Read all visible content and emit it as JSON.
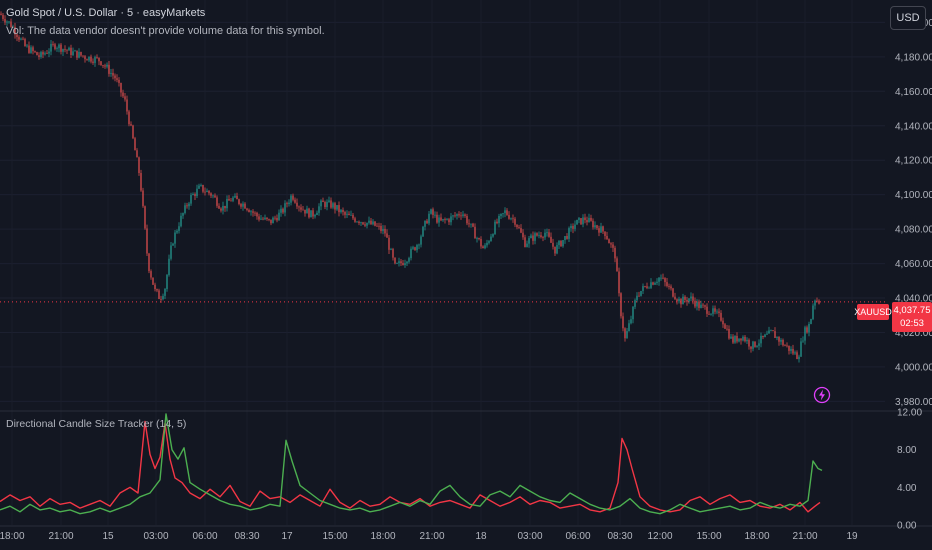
{
  "legend": {
    "title": "Gold Spot / U.S. Dollar · 5 · easyMarkets",
    "volume_note": "Vol: The data vendor doesn't provide volume data for this symbol."
  },
  "currency_button": "USD",
  "last_price": {
    "symbol": "XAUUSD",
    "price": "4,037.75",
    "countdown": "02:53",
    "value": 4037.75
  },
  "price_axis": {
    "labels": [
      "4,200.00",
      "4,180.00",
      "4,160.00",
      "4,140.00",
      "4,120.00",
      "4,100.00",
      "4,080.00",
      "4,060.00",
      "4,040.00",
      "4,020.00",
      "4,000.00",
      "3,980.00"
    ],
    "values": [
      4200,
      4180,
      4160,
      4140,
      4120,
      4100,
      4080,
      4060,
      4040,
      4020,
      4000,
      3980
    ]
  },
  "indicator": {
    "title": "Directional Candle Size Tracker (14, 5)",
    "axis_labels": [
      "12.00",
      "8.00",
      "4.00",
      "0.00"
    ],
    "axis_values": [
      12,
      8,
      4,
      0
    ],
    "colors": {
      "up": "#4caf50",
      "down": "#f23645"
    }
  },
  "time_axis": {
    "labels": [
      "18:00",
      "21:00",
      "15",
      "03:00",
      "06:00",
      "08:30",
      "17",
      "15:00",
      "18:00",
      "21:00",
      "18",
      "03:00",
      "06:00",
      "08:30",
      "12:00",
      "15:00",
      "18:00",
      "21:00",
      "19"
    ]
  },
  "colors": {
    "background": "#131722",
    "up_candle": "#26a69a",
    "down_candle": "#ef5350",
    "price_line": "#f23645"
  },
  "chart_data": [
    {
      "type": "candlestick",
      "title": "Gold Spot / U.S. Dollar · 5 · easyMarkets",
      "ylim": [
        3975,
        4213
      ],
      "close_path": [
        [
          0,
          4205
        ],
        [
          12,
          4198
        ],
        [
          25,
          4186
        ],
        [
          40,
          4180
        ],
        [
          55,
          4187
        ],
        [
          70,
          4183
        ],
        [
          85,
          4180
        ],
        [
          100,
          4178
        ],
        [
          115,
          4168
        ],
        [
          125,
          4154
        ],
        [
          132,
          4135
        ],
        [
          140,
          4110
        ],
        [
          148,
          4060
        ],
        [
          155,
          4044
        ],
        [
          160,
          4040
        ],
        [
          165,
          4046
        ],
        [
          172,
          4072
        ],
        [
          180,
          4085
        ],
        [
          190,
          4098
        ],
        [
          200,
          4104
        ],
        [
          212,
          4100
        ],
        [
          222,
          4092
        ],
        [
          232,
          4098
        ],
        [
          245,
          4094
        ],
        [
          258,
          4087
        ],
        [
          270,
          4084
        ],
        [
          282,
          4090
        ],
        [
          292,
          4100
        ],
        [
          300,
          4093
        ],
        [
          312,
          4088
        ],
        [
          322,
          4095
        ],
        [
          332,
          4094
        ],
        [
          345,
          4088
        ],
        [
          360,
          4085
        ],
        [
          375,
          4082
        ],
        [
          385,
          4078
        ],
        [
          395,
          4058
        ],
        [
          405,
          4062
        ],
        [
          418,
          4072
        ],
        [
          430,
          4090
        ],
        [
          440,
          4084
        ],
        [
          450,
          4086
        ],
        [
          462,
          4090
        ],
        [
          472,
          4080
        ],
        [
          484,
          4068
        ],
        [
          495,
          4082
        ],
        [
          505,
          4090
        ],
        [
          515,
          4085
        ],
        [
          525,
          4072
        ],
        [
          535,
          4076
        ],
        [
          545,
          4078
        ],
        [
          555,
          4068
        ],
        [
          565,
          4075
        ],
        [
          575,
          4083
        ],
        [
          585,
          4086
        ],
        [
          595,
          4082
        ],
        [
          605,
          4078
        ],
        [
          615,
          4065
        ],
        [
          620,
          4035
        ],
        [
          625,
          4016
        ],
        [
          630,
          4026
        ],
        [
          637,
          4042
        ],
        [
          648,
          4048
        ],
        [
          660,
          4052
        ],
        [
          670,
          4045
        ],
        [
          680,
          4038
        ],
        [
          690,
          4040
        ],
        [
          700,
          4035
        ],
        [
          712,
          4032
        ],
        [
          722,
          4028
        ],
        [
          732,
          4015
        ],
        [
          742,
          4018
        ],
        [
          752,
          4012
        ],
        [
          762,
          4016
        ],
        [
          772,
          4020
        ],
        [
          782,
          4014
        ],
        [
          790,
          4010
        ],
        [
          798,
          4006
        ],
        [
          804,
          4020
        ],
        [
          810,
          4025
        ],
        [
          814,
          4040
        ],
        [
          820,
          4037.75
        ]
      ]
    },
    {
      "type": "line",
      "title": "Directional Candle Size Tracker (14, 5)",
      "ylim": [
        0,
        12
      ],
      "series": [
        {
          "color": "#f23645",
          "points": [
            [
              0,
              2.5
            ],
            [
              10,
              3.2
            ],
            [
              20,
              2.6
            ],
            [
              30,
              3.0
            ],
            [
              40,
              2.0
            ],
            [
              50,
              2.8
            ],
            [
              60,
              2.2
            ],
            [
              70,
              2.4
            ],
            [
              80,
              1.8
            ],
            [
              90,
              2.2
            ],
            [
              100,
              2.6
            ],
            [
              110,
              2.0
            ],
            [
              120,
              3.4
            ],
            [
              130,
              4.0
            ],
            [
              138,
              3.4
            ],
            [
              145,
              11.0
            ],
            [
              150,
              7.5
            ],
            [
              155,
              6.0
            ],
            [
              160,
              7.2
            ],
            [
              165,
              10.8
            ],
            [
              170,
              7.0
            ],
            [
              175,
              5.0
            ],
            [
              182,
              4.5
            ],
            [
              190,
              3.4
            ],
            [
              200,
              2.8
            ],
            [
              210,
              3.8
            ],
            [
              220,
              3.0
            ],
            [
              230,
              4.2
            ],
            [
              240,
              2.5
            ],
            [
              250,
              2.0
            ],
            [
              260,
              3.6
            ],
            [
              270,
              2.8
            ],
            [
              280,
              3.0
            ],
            [
              290,
              2.4
            ],
            [
              300,
              3.2
            ],
            [
              310,
              2.6
            ],
            [
              320,
              2.0
            ],
            [
              330,
              3.8
            ],
            [
              340,
              2.4
            ],
            [
              350,
              1.8
            ],
            [
              360,
              2.6
            ],
            [
              370,
              2.0
            ],
            [
              380,
              2.2
            ],
            [
              390,
              3.0
            ],
            [
              400,
              2.4
            ],
            [
              410,
              2.2
            ],
            [
              420,
              2.8
            ],
            [
              430,
              2.0
            ],
            [
              440,
              2.4
            ],
            [
              450,
              2.6
            ],
            [
              460,
              2.2
            ],
            [
              470,
              1.8
            ],
            [
              480,
              3.2
            ],
            [
              490,
              2.6
            ],
            [
              500,
              2.0
            ],
            [
              510,
              2.4
            ],
            [
              520,
              3.0
            ],
            [
              530,
              2.2
            ],
            [
              540,
              2.6
            ],
            [
              550,
              2.4
            ],
            [
              560,
              1.8
            ],
            [
              570,
              2.0
            ],
            [
              580,
              2.2
            ],
            [
              590,
              1.6
            ],
            [
              600,
              1.4
            ],
            [
              610,
              1.8
            ],
            [
              618,
              4.5
            ],
            [
              622,
              9.2
            ],
            [
              627,
              8.0
            ],
            [
              632,
              6.0
            ],
            [
              640,
              3.0
            ],
            [
              650,
              2.0
            ],
            [
              660,
              1.6
            ],
            [
              670,
              1.4
            ],
            [
              680,
              1.6
            ],
            [
              690,
              2.6
            ],
            [
              700,
              3.0
            ],
            [
              710,
              2.2
            ],
            [
              720,
              2.8
            ],
            [
              730,
              3.2
            ],
            [
              740,
              2.4
            ],
            [
              750,
              2.6
            ],
            [
              760,
              2.0
            ],
            [
              770,
              1.8
            ],
            [
              780,
              2.2
            ],
            [
              790,
              1.6
            ],
            [
              800,
              2.4
            ],
            [
              808,
              1.4
            ],
            [
              815,
              2.0
            ],
            [
              820,
              2.4
            ]
          ]
        },
        {
          "color": "#4caf50",
          "points": [
            [
              0,
              1.6
            ],
            [
              10,
              2.0
            ],
            [
              20,
              1.4
            ],
            [
              30,
              2.2
            ],
            [
              40,
              1.6
            ],
            [
              50,
              1.8
            ],
            [
              60,
              1.4
            ],
            [
              70,
              1.6
            ],
            [
              80,
              1.2
            ],
            [
              90,
              1.4
            ],
            [
              100,
              1.8
            ],
            [
              110,
              1.4
            ],
            [
              120,
              1.8
            ],
            [
              130,
              2.2
            ],
            [
              140,
              3.0
            ],
            [
              150,
              3.4
            ],
            [
              160,
              4.8
            ],
            [
              166,
              11.8
            ],
            [
              172,
              8.0
            ],
            [
              178,
              7.0
            ],
            [
              184,
              8.2
            ],
            [
              190,
              4.5
            ],
            [
              200,
              3.8
            ],
            [
              210,
              3.2
            ],
            [
              220,
              2.6
            ],
            [
              230,
              2.2
            ],
            [
              240,
              2.0
            ],
            [
              250,
              1.6
            ],
            [
              260,
              1.8
            ],
            [
              270,
              2.2
            ],
            [
              280,
              2.0
            ],
            [
              286,
              9.0
            ],
            [
              292,
              6.8
            ],
            [
              300,
              4.2
            ],
            [
              310,
              3.4
            ],
            [
              320,
              2.6
            ],
            [
              330,
              2.2
            ],
            [
              340,
              1.8
            ],
            [
              350,
              1.6
            ],
            [
              360,
              1.8
            ],
            [
              370,
              1.4
            ],
            [
              380,
              1.6
            ],
            [
              390,
              2.0
            ],
            [
              400,
              2.4
            ],
            [
              410,
              2.0
            ],
            [
              420,
              2.6
            ],
            [
              430,
              2.2
            ],
            [
              440,
              3.6
            ],
            [
              450,
              4.2
            ],
            [
              460,
              3.0
            ],
            [
              470,
              2.2
            ],
            [
              480,
              2.0
            ],
            [
              490,
              3.2
            ],
            [
              500,
              3.6
            ],
            [
              510,
              3.0
            ],
            [
              520,
              4.2
            ],
            [
              530,
              3.6
            ],
            [
              540,
              3.0
            ],
            [
              550,
              2.6
            ],
            [
              560,
              2.4
            ],
            [
              570,
              3.4
            ],
            [
              580,
              2.8
            ],
            [
              590,
              2.2
            ],
            [
              600,
              1.8
            ],
            [
              610,
              1.6
            ],
            [
              620,
              2.0
            ],
            [
              630,
              2.8
            ],
            [
              640,
              1.8
            ],
            [
              650,
              1.4
            ],
            [
              660,
              1.2
            ],
            [
              670,
              1.6
            ],
            [
              680,
              2.2
            ],
            [
              690,
              1.8
            ],
            [
              700,
              1.4
            ],
            [
              710,
              1.6
            ],
            [
              720,
              1.8
            ],
            [
              730,
              2.0
            ],
            [
              740,
              1.6
            ],
            [
              750,
              1.8
            ],
            [
              760,
              2.4
            ],
            [
              770,
              2.0
            ],
            [
              780,
              1.8
            ],
            [
              790,
              2.2
            ],
            [
              800,
              2.0
            ],
            [
              808,
              2.6
            ],
            [
              813,
              6.8
            ],
            [
              818,
              6.0
            ],
            [
              822,
              5.8
            ]
          ]
        }
      ]
    }
  ]
}
